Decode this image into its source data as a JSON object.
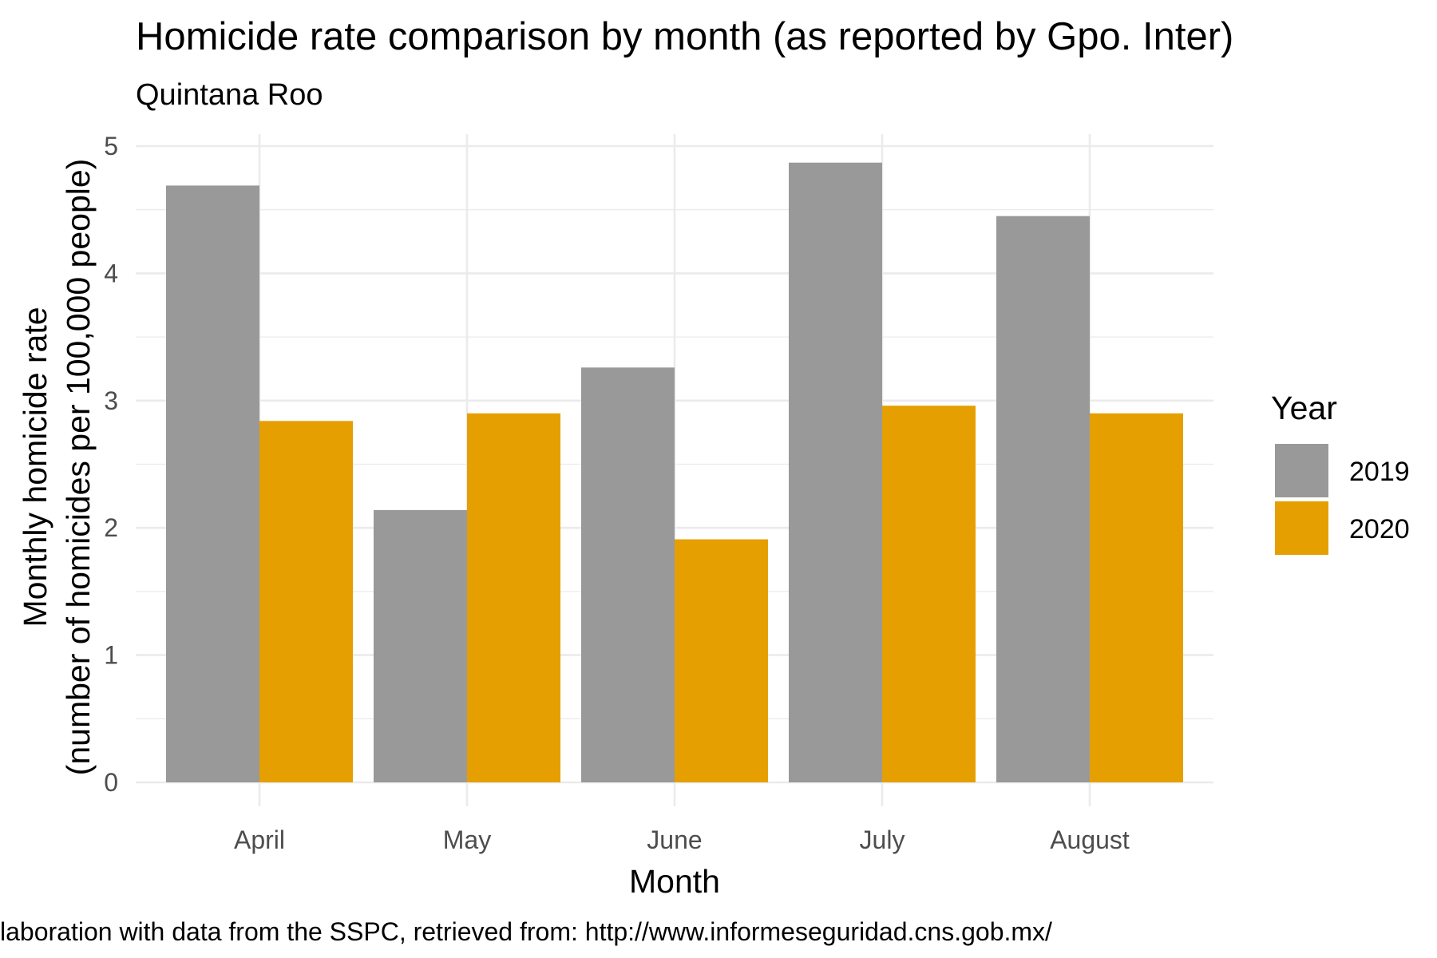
{
  "chart_data": {
    "type": "bar",
    "title": "Homicide rate comparison by month (as reported by Gpo. Inter)",
    "subtitle": "Quintana Roo",
    "xlabel": "Month",
    "ylabel_line1": "Monthly homicide rate",
    "ylabel_line2": "(number of homicides per 100,000 people)",
    "categories": [
      "April",
      "May",
      "June",
      "July",
      "August"
    ],
    "series": [
      {
        "name": "2019",
        "color": "#999999",
        "values": [
          4.69,
          2.14,
          3.26,
          4.87,
          4.45
        ]
      },
      {
        "name": "2020",
        "color": "#E69F00",
        "values": [
          2.84,
          2.9,
          1.91,
          2.96,
          2.9
        ]
      }
    ],
    "ylim": [
      0,
      5
    ],
    "yticks": [
      "0",
      "1",
      "2",
      "3",
      "4",
      "5"
    ],
    "legend": {
      "title": "Year",
      "position": "right"
    },
    "grid": true,
    "caption": "laboration with data from the SSPC, retrieved from: http://www.informeseguridad.cns.gob.mx/"
  }
}
